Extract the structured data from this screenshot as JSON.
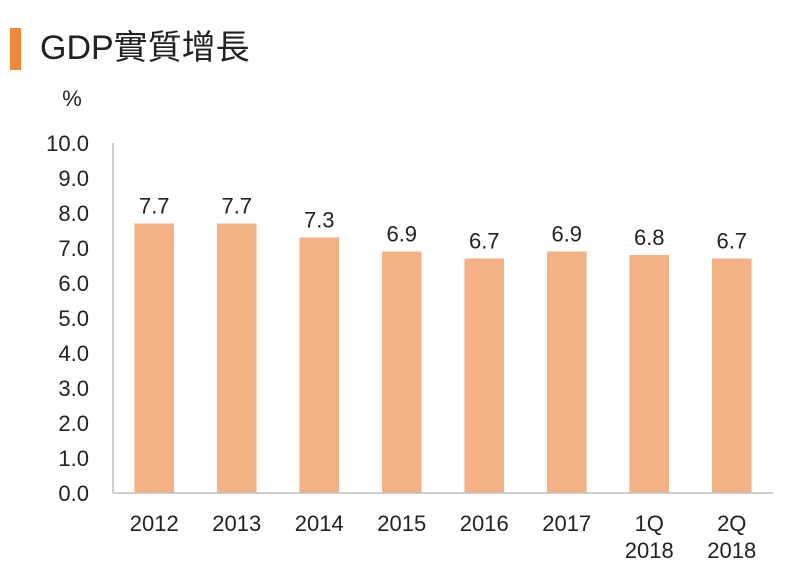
{
  "header": {
    "title": "GDP實質增長"
  },
  "colors": {
    "accent": "#F0883A",
    "bar": "#F4B183",
    "axis": "#BFBFBF",
    "text": "#222222"
  },
  "chart_data": {
    "type": "bar",
    "title": "GDP實質增長",
    "xlabel": "",
    "ylabel": "%",
    "ylim": [
      0,
      10
    ],
    "yticks": [
      "0.0",
      "1.0",
      "2.0",
      "3.0",
      "4.0",
      "5.0",
      "6.0",
      "7.0",
      "8.0",
      "9.0",
      "10.0"
    ],
    "grid": false,
    "legend": "none",
    "categories": [
      [
        "2012"
      ],
      [
        "2013"
      ],
      [
        "2014"
      ],
      [
        "2015"
      ],
      [
        "2016"
      ],
      [
        "2017"
      ],
      [
        "1Q",
        "2018"
      ],
      [
        "2Q",
        "2018"
      ]
    ],
    "values": [
      7.7,
      7.7,
      7.3,
      6.9,
      6.7,
      6.9,
      6.8,
      6.7
    ],
    "data_labels": [
      "7.7",
      "7.7",
      "7.3",
      "6.9",
      "6.7",
      "6.9",
      "6.8",
      "6.7"
    ]
  }
}
